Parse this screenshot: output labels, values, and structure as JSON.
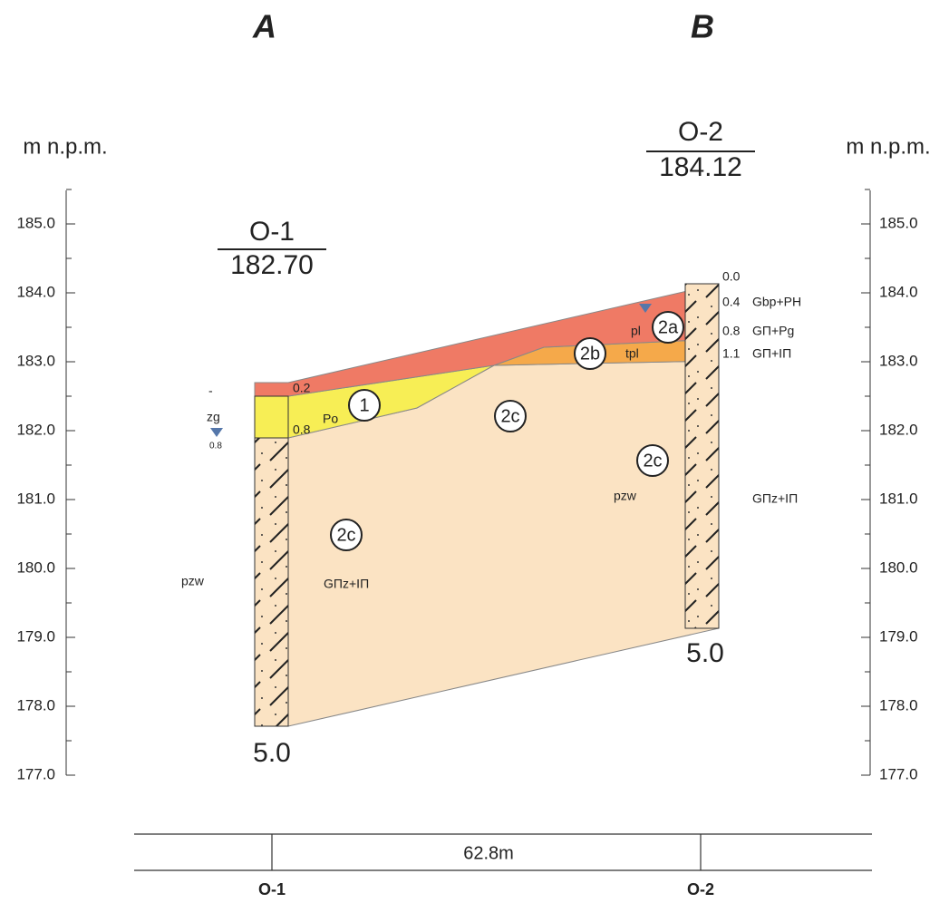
{
  "columns": {
    "left": "A",
    "right": "B"
  },
  "axis": {
    "unit_left": "m n.p.m.",
    "unit_right": "m n.p.m.",
    "ticks": [
      "185.0",
      "184.0",
      "183.0",
      "182.0",
      "181.0",
      "180.0",
      "179.0",
      "178.0",
      "177.0"
    ]
  },
  "boreholes": [
    {
      "name": "O-1",
      "elevation": "182.70",
      "depth": "5.0"
    },
    {
      "name": "O-2",
      "elevation": "184.12",
      "depth": "5.0"
    }
  ],
  "o1_log": {
    "depths": [
      "0.2",
      "0.8"
    ],
    "soil": "Po",
    "note": "zg",
    "water_depth": "0.8",
    "dash": "-"
  },
  "o2_log": {
    "depths": [
      "0.0",
      "0.4",
      "0.8",
      "1.1"
    ],
    "soils": [
      "Gbp+PH",
      "GΠ+Pg",
      "GΠ+IΠ"
    ]
  },
  "layer_labels": [
    "1",
    "2a",
    "2b",
    "2c",
    "2c",
    "2c"
  ],
  "strata_notes": [
    "pl",
    "tpl",
    "pzw",
    "GΠz+IΠ",
    "pzw",
    "GΠz+IΠ"
  ],
  "scale": {
    "distance": "62.8m",
    "left": "O-1",
    "right": "O-2"
  }
}
